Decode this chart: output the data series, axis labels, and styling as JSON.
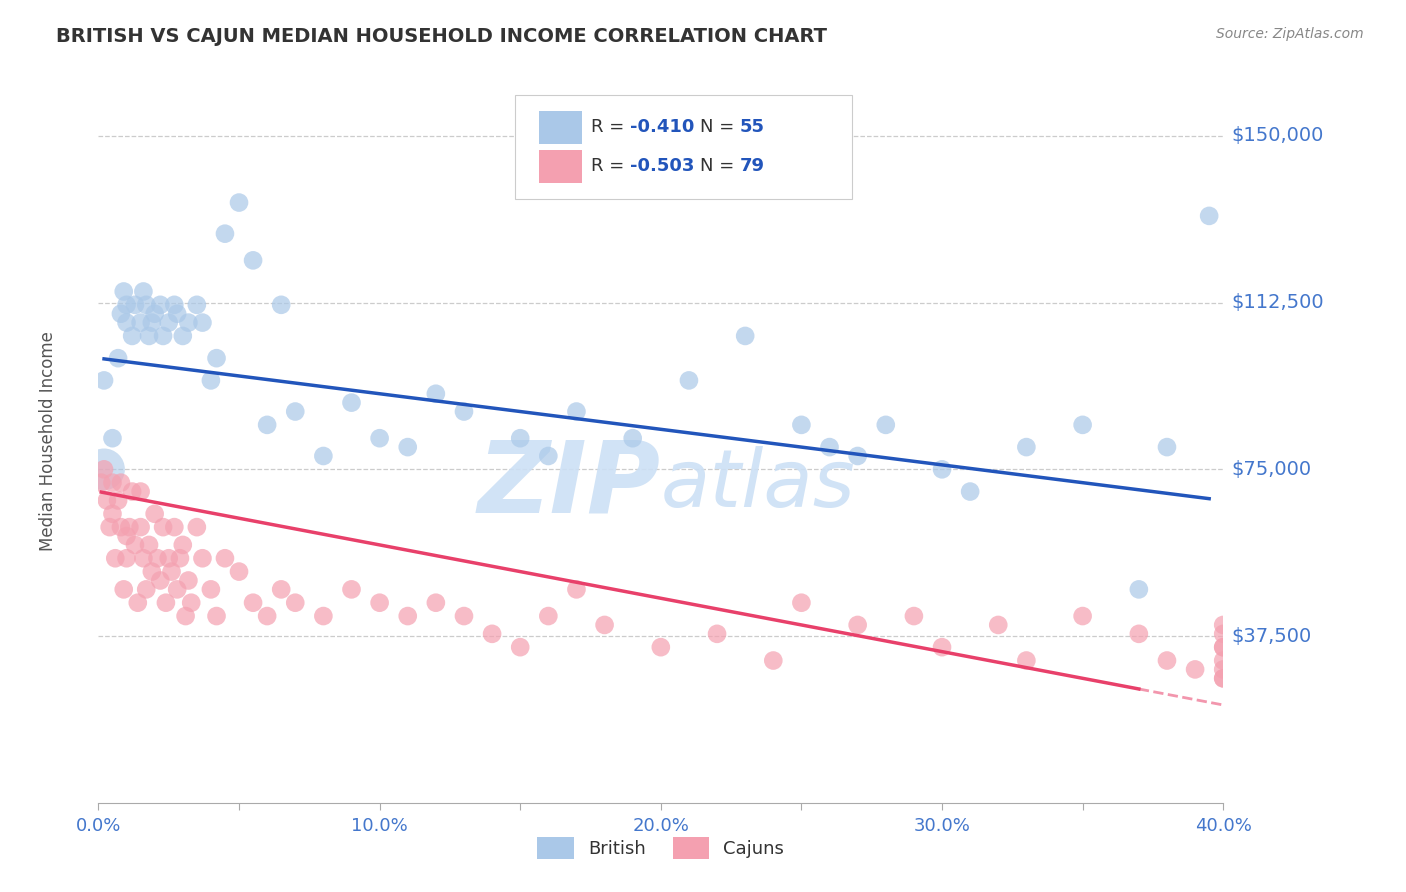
{
  "title": "BRITISH VS CAJUN MEDIAN HOUSEHOLD INCOME CORRELATION CHART",
  "source_text": "Source: ZipAtlas.com",
  "ylabel": "Median Household Income",
  "xlim": [
    0.0,
    0.4
  ],
  "ylim": [
    0,
    162500
  ],
  "yticks": [
    0,
    37500,
    75000,
    112500,
    150000
  ],
  "ytick_labels": [
    "",
    "$37,500",
    "$75,000",
    "$112,500",
    "$150,000"
  ],
  "xticks": [
    0.0,
    0.05,
    0.1,
    0.15,
    0.2,
    0.25,
    0.3,
    0.35,
    0.4
  ],
  "xtick_labels": [
    "0.0%",
    "",
    "10.0%",
    "",
    "20.0%",
    "",
    "30.0%",
    "",
    "40.0%"
  ],
  "british_R": -0.41,
  "british_N": 55,
  "cajun_R": -0.503,
  "cajun_N": 79,
  "british_color": "#aac8e8",
  "british_line_color": "#2255bb",
  "cajun_color": "#f4a0b0",
  "cajun_line_color": "#e8406a",
  "background_color": "#ffffff",
  "grid_color": "#cccccc",
  "title_color": "#333333",
  "axis_tick_color": "#4477cc",
  "watermark_color": "#cce0f5",
  "legend_R_color": "#2255bb",
  "legend_N_color": "#333333",
  "british_x": [
    0.002,
    0.005,
    0.007,
    0.008,
    0.009,
    0.01,
    0.01,
    0.012,
    0.013,
    0.015,
    0.016,
    0.017,
    0.018,
    0.019,
    0.02,
    0.022,
    0.023,
    0.025,
    0.027,
    0.028,
    0.03,
    0.032,
    0.035,
    0.037,
    0.04,
    0.042,
    0.045,
    0.05,
    0.055,
    0.06,
    0.065,
    0.07,
    0.08,
    0.09,
    0.1,
    0.11,
    0.12,
    0.13,
    0.15,
    0.16,
    0.17,
    0.19,
    0.21,
    0.23,
    0.25,
    0.26,
    0.27,
    0.28,
    0.3,
    0.31,
    0.33,
    0.35,
    0.37,
    0.38,
    0.395
  ],
  "british_y": [
    95000,
    82000,
    100000,
    110000,
    115000,
    112000,
    108000,
    105000,
    112000,
    108000,
    115000,
    112000,
    105000,
    108000,
    110000,
    112000,
    105000,
    108000,
    112000,
    110000,
    105000,
    108000,
    112000,
    108000,
    95000,
    100000,
    128000,
    135000,
    122000,
    85000,
    112000,
    88000,
    78000,
    90000,
    82000,
    80000,
    92000,
    88000,
    82000,
    78000,
    88000,
    82000,
    95000,
    105000,
    85000,
    80000,
    78000,
    85000,
    75000,
    70000,
    80000,
    85000,
    48000,
    80000,
    132000
  ],
  "cajun_x": [
    0.001,
    0.002,
    0.003,
    0.004,
    0.005,
    0.005,
    0.006,
    0.007,
    0.008,
    0.008,
    0.009,
    0.01,
    0.01,
    0.011,
    0.012,
    0.013,
    0.014,
    0.015,
    0.015,
    0.016,
    0.017,
    0.018,
    0.019,
    0.02,
    0.021,
    0.022,
    0.023,
    0.024,
    0.025,
    0.026,
    0.027,
    0.028,
    0.029,
    0.03,
    0.031,
    0.032,
    0.033,
    0.035,
    0.037,
    0.04,
    0.042,
    0.045,
    0.05,
    0.055,
    0.06,
    0.065,
    0.07,
    0.08,
    0.09,
    0.1,
    0.11,
    0.12,
    0.13,
    0.14,
    0.15,
    0.16,
    0.17,
    0.18,
    0.2,
    0.22,
    0.24,
    0.25,
    0.27,
    0.29,
    0.3,
    0.32,
    0.33,
    0.35,
    0.37,
    0.38,
    0.39,
    0.4,
    0.4,
    0.4,
    0.4,
    0.4,
    0.4,
    0.4,
    0.4
  ],
  "cajun_y": [
    72000,
    75000,
    68000,
    62000,
    65000,
    72000,
    55000,
    68000,
    62000,
    72000,
    48000,
    60000,
    55000,
    62000,
    70000,
    58000,
    45000,
    70000,
    62000,
    55000,
    48000,
    58000,
    52000,
    65000,
    55000,
    50000,
    62000,
    45000,
    55000,
    52000,
    62000,
    48000,
    55000,
    58000,
    42000,
    50000,
    45000,
    62000,
    55000,
    48000,
    42000,
    55000,
    52000,
    45000,
    42000,
    48000,
    45000,
    42000,
    48000,
    45000,
    42000,
    45000,
    42000,
    38000,
    35000,
    42000,
    48000,
    40000,
    35000,
    38000,
    32000,
    45000,
    40000,
    42000,
    35000,
    40000,
    32000,
    42000,
    38000,
    32000,
    30000,
    28000,
    35000,
    40000,
    30000,
    32000,
    38000,
    28000,
    35000
  ]
}
